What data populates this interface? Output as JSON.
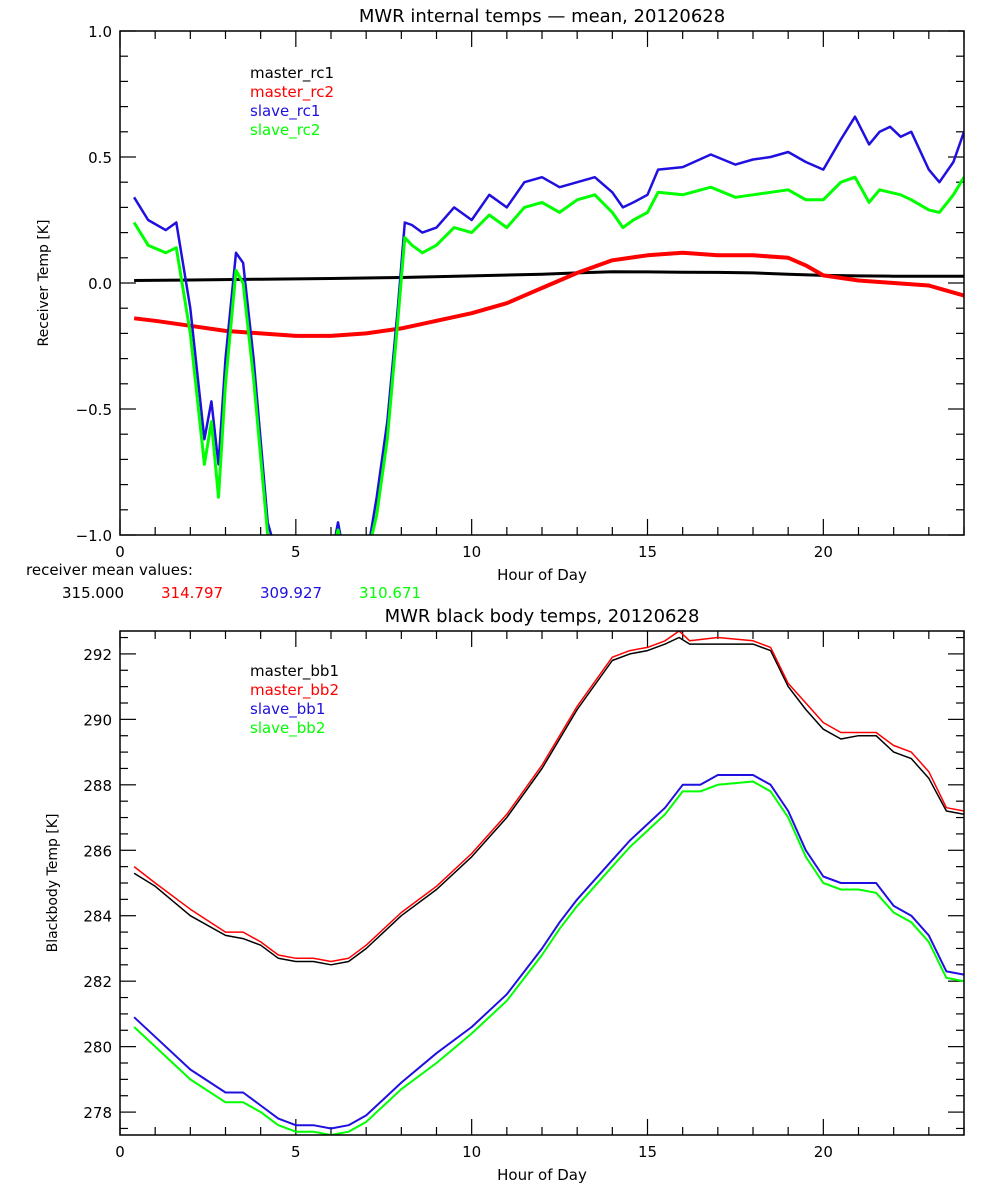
{
  "chart_data": [
    {
      "type": "line",
      "title": "MWR internal temps — mean, 20120628",
      "xlabel": "Hour of Day",
      "ylabel": "Receiver Temp [K]",
      "xlim": [
        0,
        24
      ],
      "ylim": [
        -1.0,
        1.0
      ],
      "xticks": [
        0,
        5,
        10,
        15,
        20
      ],
      "xtick_labels": [
        "0",
        "5",
        "10",
        "15",
        "20"
      ],
      "yticks": [
        -1.0,
        -0.5,
        0.0,
        0.5,
        1.0
      ],
      "ytick_labels": [
        "−1.0",
        "−0.5",
        "0.0",
        "0.5",
        "1.0"
      ],
      "grid": false,
      "legend_position": "top-left",
      "series": [
        {
          "name": "master_rc1",
          "color": "#000000",
          "x": [
            0.4,
            2,
            4,
            6,
            8,
            10,
            12,
            13,
            14,
            15,
            16,
            17,
            18,
            19,
            20,
            21,
            22,
            23,
            24
          ],
          "y": [
            0.01,
            0.012,
            0.015,
            0.018,
            0.022,
            0.028,
            0.035,
            0.04,
            0.045,
            0.044,
            0.043,
            0.042,
            0.04,
            0.035,
            0.03,
            0.028,
            0.027,
            0.027,
            0.027
          ]
        },
        {
          "name": "master_rc2",
          "color": "#ff0000",
          "x": [
            0.4,
            1,
            2,
            3,
            4,
            5,
            6,
            7,
            8,
            9,
            10,
            11,
            11.5,
            12,
            13,
            14,
            15,
            16,
            17,
            18,
            19,
            19.5,
            20,
            21,
            22,
            23,
            23.5,
            24
          ],
          "y": [
            -0.14,
            -0.15,
            -0.17,
            -0.19,
            -0.2,
            -0.21,
            -0.21,
            -0.2,
            -0.18,
            -0.15,
            -0.12,
            -0.08,
            -0.05,
            -0.02,
            0.04,
            0.09,
            0.11,
            0.12,
            0.11,
            0.11,
            0.1,
            0.07,
            0.03,
            0.01,
            0.0,
            -0.01,
            -0.03,
            -0.05
          ]
        },
        {
          "name": "slave_rc1",
          "color": "#2010e0",
          "x": [
            0.4,
            0.8,
            1.3,
            1.6,
            2.0,
            2.4,
            2.6,
            2.8,
            3.0,
            3.3,
            3.5,
            3.8,
            4.2,
            4.5,
            5.0,
            6.0,
            6.2,
            6.4,
            7.0,
            7.3,
            7.6,
            7.9,
            8.1,
            8.3,
            8.6,
            9.0,
            9.5,
            10,
            10.5,
            11,
            11.5,
            12,
            12.5,
            13,
            13.5,
            14,
            14.3,
            14.6,
            15.0,
            15.3,
            16,
            16.8,
            17.5,
            18,
            18.5,
            19,
            19.5,
            20,
            20.5,
            20.9,
            21.3,
            21.6,
            21.9,
            22.2,
            22.5,
            23,
            23.3,
            23.7,
            24
          ],
          "y": [
            0.34,
            0.25,
            0.21,
            0.24,
            -0.1,
            -0.62,
            -0.47,
            -0.72,
            -0.3,
            0.12,
            0.08,
            -0.3,
            -0.95,
            -1.1,
            -1.1,
            -1.1,
            -0.95,
            -1.1,
            -1.1,
            -0.85,
            -0.55,
            -0.1,
            0.24,
            0.23,
            0.2,
            0.22,
            0.3,
            0.25,
            0.35,
            0.3,
            0.4,
            0.42,
            0.38,
            0.4,
            0.42,
            0.36,
            0.3,
            0.32,
            0.35,
            0.45,
            0.46,
            0.51,
            0.47,
            0.49,
            0.5,
            0.52,
            0.48,
            0.45,
            0.57,
            0.66,
            0.55,
            0.6,
            0.62,
            0.58,
            0.6,
            0.45,
            0.4,
            0.48,
            0.6
          ]
        },
        {
          "name": "slave_rc2",
          "color": "#00ff00",
          "x": [
            0.4,
            0.8,
            1.3,
            1.6,
            2.0,
            2.4,
            2.6,
            2.8,
            3.0,
            3.3,
            3.5,
            3.8,
            4.2,
            4.5,
            5.0,
            6.0,
            6.2,
            6.4,
            7.0,
            7.3,
            7.6,
            7.9,
            8.1,
            8.3,
            8.6,
            9.0,
            9.5,
            10,
            10.5,
            11,
            11.5,
            12,
            12.5,
            13,
            13.5,
            14,
            14.3,
            14.6,
            15.0,
            15.3,
            16,
            16.8,
            17.5,
            18,
            18.5,
            19,
            19.5,
            20,
            20.5,
            20.9,
            21.3,
            21.6,
            21.9,
            22.2,
            22.5,
            23,
            23.3,
            23.7,
            24
          ],
          "y": [
            0.24,
            0.15,
            0.12,
            0.14,
            -0.2,
            -0.72,
            -0.55,
            -0.85,
            -0.4,
            0.05,
            0.0,
            -0.38,
            -1.0,
            -1.1,
            -1.1,
            -1.1,
            -0.98,
            -1.1,
            -1.1,
            -0.92,
            -0.62,
            -0.15,
            0.18,
            0.15,
            0.12,
            0.15,
            0.22,
            0.2,
            0.27,
            0.22,
            0.3,
            0.32,
            0.28,
            0.33,
            0.35,
            0.28,
            0.22,
            0.25,
            0.28,
            0.36,
            0.35,
            0.38,
            0.34,
            0.35,
            0.36,
            0.37,
            0.33,
            0.33,
            0.4,
            0.42,
            0.32,
            0.37,
            0.36,
            0.35,
            0.33,
            0.29,
            0.28,
            0.35,
            0.42
          ]
        }
      ],
      "annotation": {
        "label": "receiver mean values:",
        "values": [
          {
            "text": "315.000",
            "color": "#000000"
          },
          {
            "text": "314.797",
            "color": "#ff0000"
          },
          {
            "text": "309.927",
            "color": "#2010e0"
          },
          {
            "text": "310.671",
            "color": "#00ff00"
          }
        ]
      }
    },
    {
      "type": "line",
      "title": "MWR black body temps, 20120628",
      "xlabel": "Hour of Day",
      "ylabel": "Blackbody Temp [K]",
      "xlim": [
        0,
        24
      ],
      "ylim": [
        277.3,
        292.7
      ],
      "xticks": [
        0,
        5,
        10,
        15,
        20
      ],
      "xtick_labels": [
        "0",
        "5",
        "10",
        "15",
        "20"
      ],
      "yticks": [
        278,
        280,
        282,
        284,
        286,
        288,
        290,
        292
      ],
      "ytick_labels": [
        "278",
        "280",
        "282",
        "284",
        "286",
        "288",
        "290",
        "292"
      ],
      "grid": false,
      "legend_position": "top-left",
      "series": [
        {
          "name": "master_bb1",
          "color": "#000000",
          "x": [
            0.4,
            1,
            2,
            3,
            3.5,
            4,
            4.5,
            5,
            5.5,
            6,
            6.5,
            7,
            8,
            9,
            10,
            11,
            12,
            12.5,
            13,
            14,
            14.5,
            15,
            15.5,
            15.9,
            16.2,
            17,
            18,
            18.5,
            19,
            19.5,
            20,
            20.5,
            21,
            21.5,
            22,
            22.5,
            23,
            23.5,
            24
          ],
          "y": [
            285.3,
            284.9,
            284.0,
            283.4,
            283.3,
            283.1,
            282.7,
            282.6,
            282.6,
            282.5,
            282.6,
            283.0,
            284.0,
            284.8,
            285.8,
            287.0,
            288.5,
            289.4,
            290.3,
            291.8,
            292.0,
            292.1,
            292.3,
            292.5,
            292.3,
            292.3,
            292.3,
            292.1,
            291.0,
            290.3,
            289.7,
            289.4,
            289.5,
            289.5,
            289.0,
            288.8,
            288.2,
            287.2,
            287.1
          ]
        },
        {
          "name": "master_bb2",
          "color": "#ff0000",
          "x": [
            0.4,
            1,
            2,
            3,
            3.5,
            4,
            4.5,
            5,
            5.5,
            6,
            6.5,
            7,
            8,
            9,
            10,
            11,
            12,
            12.5,
            13,
            14,
            14.5,
            15,
            15.5,
            15.9,
            16.2,
            17,
            18,
            18.5,
            19,
            19.5,
            20,
            20.5,
            21,
            21.5,
            22,
            22.5,
            23,
            23.5,
            24
          ],
          "y": [
            285.5,
            285.0,
            284.2,
            283.5,
            283.5,
            283.2,
            282.8,
            282.7,
            282.7,
            282.6,
            282.7,
            283.1,
            284.1,
            284.9,
            285.9,
            287.1,
            288.6,
            289.5,
            290.4,
            291.9,
            292.1,
            292.2,
            292.4,
            292.7,
            292.4,
            292.5,
            292.4,
            292.2,
            291.1,
            290.5,
            289.9,
            289.6,
            289.6,
            289.6,
            289.2,
            289.0,
            288.4,
            287.3,
            287.2
          ]
        },
        {
          "name": "slave_bb1",
          "color": "#2010e0",
          "x": [
            0.4,
            1,
            2,
            3,
            3.5,
            4,
            4.5,
            5,
            5.5,
            6,
            6.5,
            7,
            8,
            9,
            10,
            11,
            12,
            12.5,
            13,
            14,
            14.5,
            15,
            15.5,
            16,
            16.5,
            17,
            18,
            18.5,
            19,
            19.5,
            20,
            20.5,
            21,
            21.5,
            22,
            22.5,
            23,
            23.5,
            24
          ],
          "y": [
            280.9,
            280.3,
            279.3,
            278.6,
            278.6,
            278.2,
            277.8,
            277.6,
            277.6,
            277.5,
            277.6,
            277.9,
            278.9,
            279.8,
            280.6,
            281.6,
            283.0,
            283.8,
            284.5,
            285.7,
            286.3,
            286.8,
            287.3,
            288.0,
            288.0,
            288.3,
            288.3,
            288.0,
            287.2,
            286.0,
            285.2,
            285.0,
            285.0,
            285.0,
            284.3,
            284.0,
            283.4,
            282.3,
            282.2
          ]
        },
        {
          "name": "slave_bb2",
          "color": "#00ff00",
          "x": [
            0.4,
            1,
            2,
            3,
            3.5,
            4,
            4.5,
            5,
            5.5,
            6,
            6.5,
            7,
            8,
            9,
            10,
            11,
            12,
            12.5,
            13,
            14,
            14.5,
            15,
            15.5,
            16,
            16.5,
            17,
            18,
            18.5,
            19,
            19.5,
            20,
            20.5,
            21,
            21.5,
            22,
            22.5,
            23,
            23.5,
            24
          ],
          "y": [
            280.6,
            280.0,
            279.0,
            278.3,
            278.3,
            278.0,
            277.6,
            277.4,
            277.4,
            277.3,
            277.4,
            277.7,
            278.7,
            279.5,
            280.4,
            281.4,
            282.8,
            283.6,
            284.3,
            285.5,
            286.1,
            286.6,
            287.1,
            287.8,
            287.8,
            288.0,
            288.1,
            287.8,
            287.0,
            285.8,
            285.0,
            284.8,
            284.8,
            284.7,
            284.1,
            283.8,
            283.2,
            282.1,
            282.0
          ]
        }
      ]
    }
  ]
}
